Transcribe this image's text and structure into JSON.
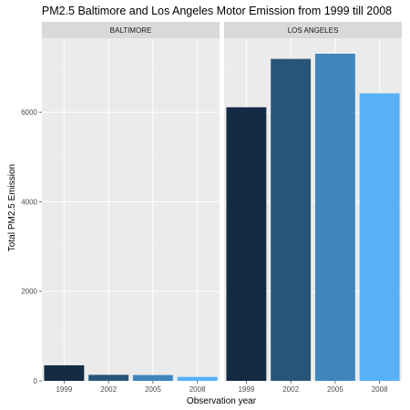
{
  "chart_data": {
    "type": "bar",
    "title": "PM2.5 Baltimore and Los Angeles Motor Emission from 1999 till 2008",
    "xlabel": "Observation year",
    "ylabel": "Total PM2.5 Emission",
    "ylim": [
      0,
      7650
    ],
    "yticks": [
      0,
      2000,
      4000,
      6000
    ],
    "categories": [
      "1999",
      "2002",
      "2005",
      "2008"
    ],
    "colors": [
      "#132B43",
      "#28547A",
      "#3F86BC",
      "#56B1F7"
    ],
    "facets": [
      {
        "name": "BALTIMORE",
        "values": [
          347,
          134,
          130,
          88
        ]
      },
      {
        "name": "LOS ANGELES",
        "values": [
          6109,
          7189,
          7304,
          6421
        ]
      }
    ]
  }
}
